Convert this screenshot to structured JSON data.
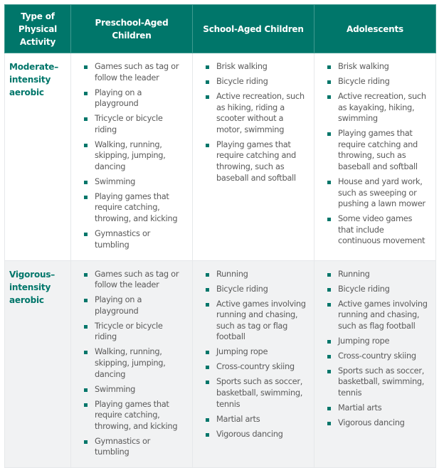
{
  "headers": [
    "Type of Physical Activity",
    "Preschool-Aged Children",
    "School-Aged Children",
    "Adolescents"
  ],
  "rows": [
    {
      "type": "Moderate–intensity aerobic",
      "cells": [
        [
          "Games such as tag or follow the leader",
          "Playing on a playground",
          "Tricycle or bicycle riding",
          "Walking, running, skipping, jumping, dancing",
          "Swimming",
          "Playing games that require catching, throwing, and kicking",
          "Gymnastics or tumbling"
        ],
        [
          "Brisk walking",
          "Bicycle riding",
          "Active recreation, such as hiking, riding a scooter without a motor, swimming",
          "Playing games that require catching and throwing, such as baseball and softball"
        ],
        [
          "Brisk walking",
          "Bicycle riding",
          "Active recreation, such as kayaking, hiking, swimming",
          "Playing games that require catching and throwing, such as baseball and softball",
          "House and yard work, such as sweeping or pushing a lawn mower",
          "Some video games that include continuous movement"
        ]
      ]
    },
    {
      "type": "Vigorous–intensity aerobic",
      "cells": [
        [
          "Games such as tag or follow the leader",
          "Playing on a playground",
          "Tricycle or bicycle riding",
          "Walking, running, skipping, jumping, dancing",
          "Swimming",
          "Playing games that require catching, throwing, and kicking",
          "Gymnastics or tumbling"
        ],
        [
          "Running",
          "Bicycle riding",
          "Active games involving running and chasing, such as tag or flag football",
          "Jumping rope",
          "Cross-country skiing",
          "Sports such as soccer, basketball, swimming, tennis",
          "Martial arts",
          "Vigorous dancing"
        ],
        [
          "Running",
          "Bicycle riding",
          "Active games involving running and chasing, such as flag football",
          "Jumping rope",
          "Cross-country skiing",
          "Sports such as soccer, basketball, swimming, tennis",
          "Martial arts",
          "Vigorous dancing"
        ]
      ]
    }
  ],
  "colors": {
    "header_bg": "#00766a",
    "accent": "#00766a",
    "alt_row_bg": "#f1f2f3"
  }
}
